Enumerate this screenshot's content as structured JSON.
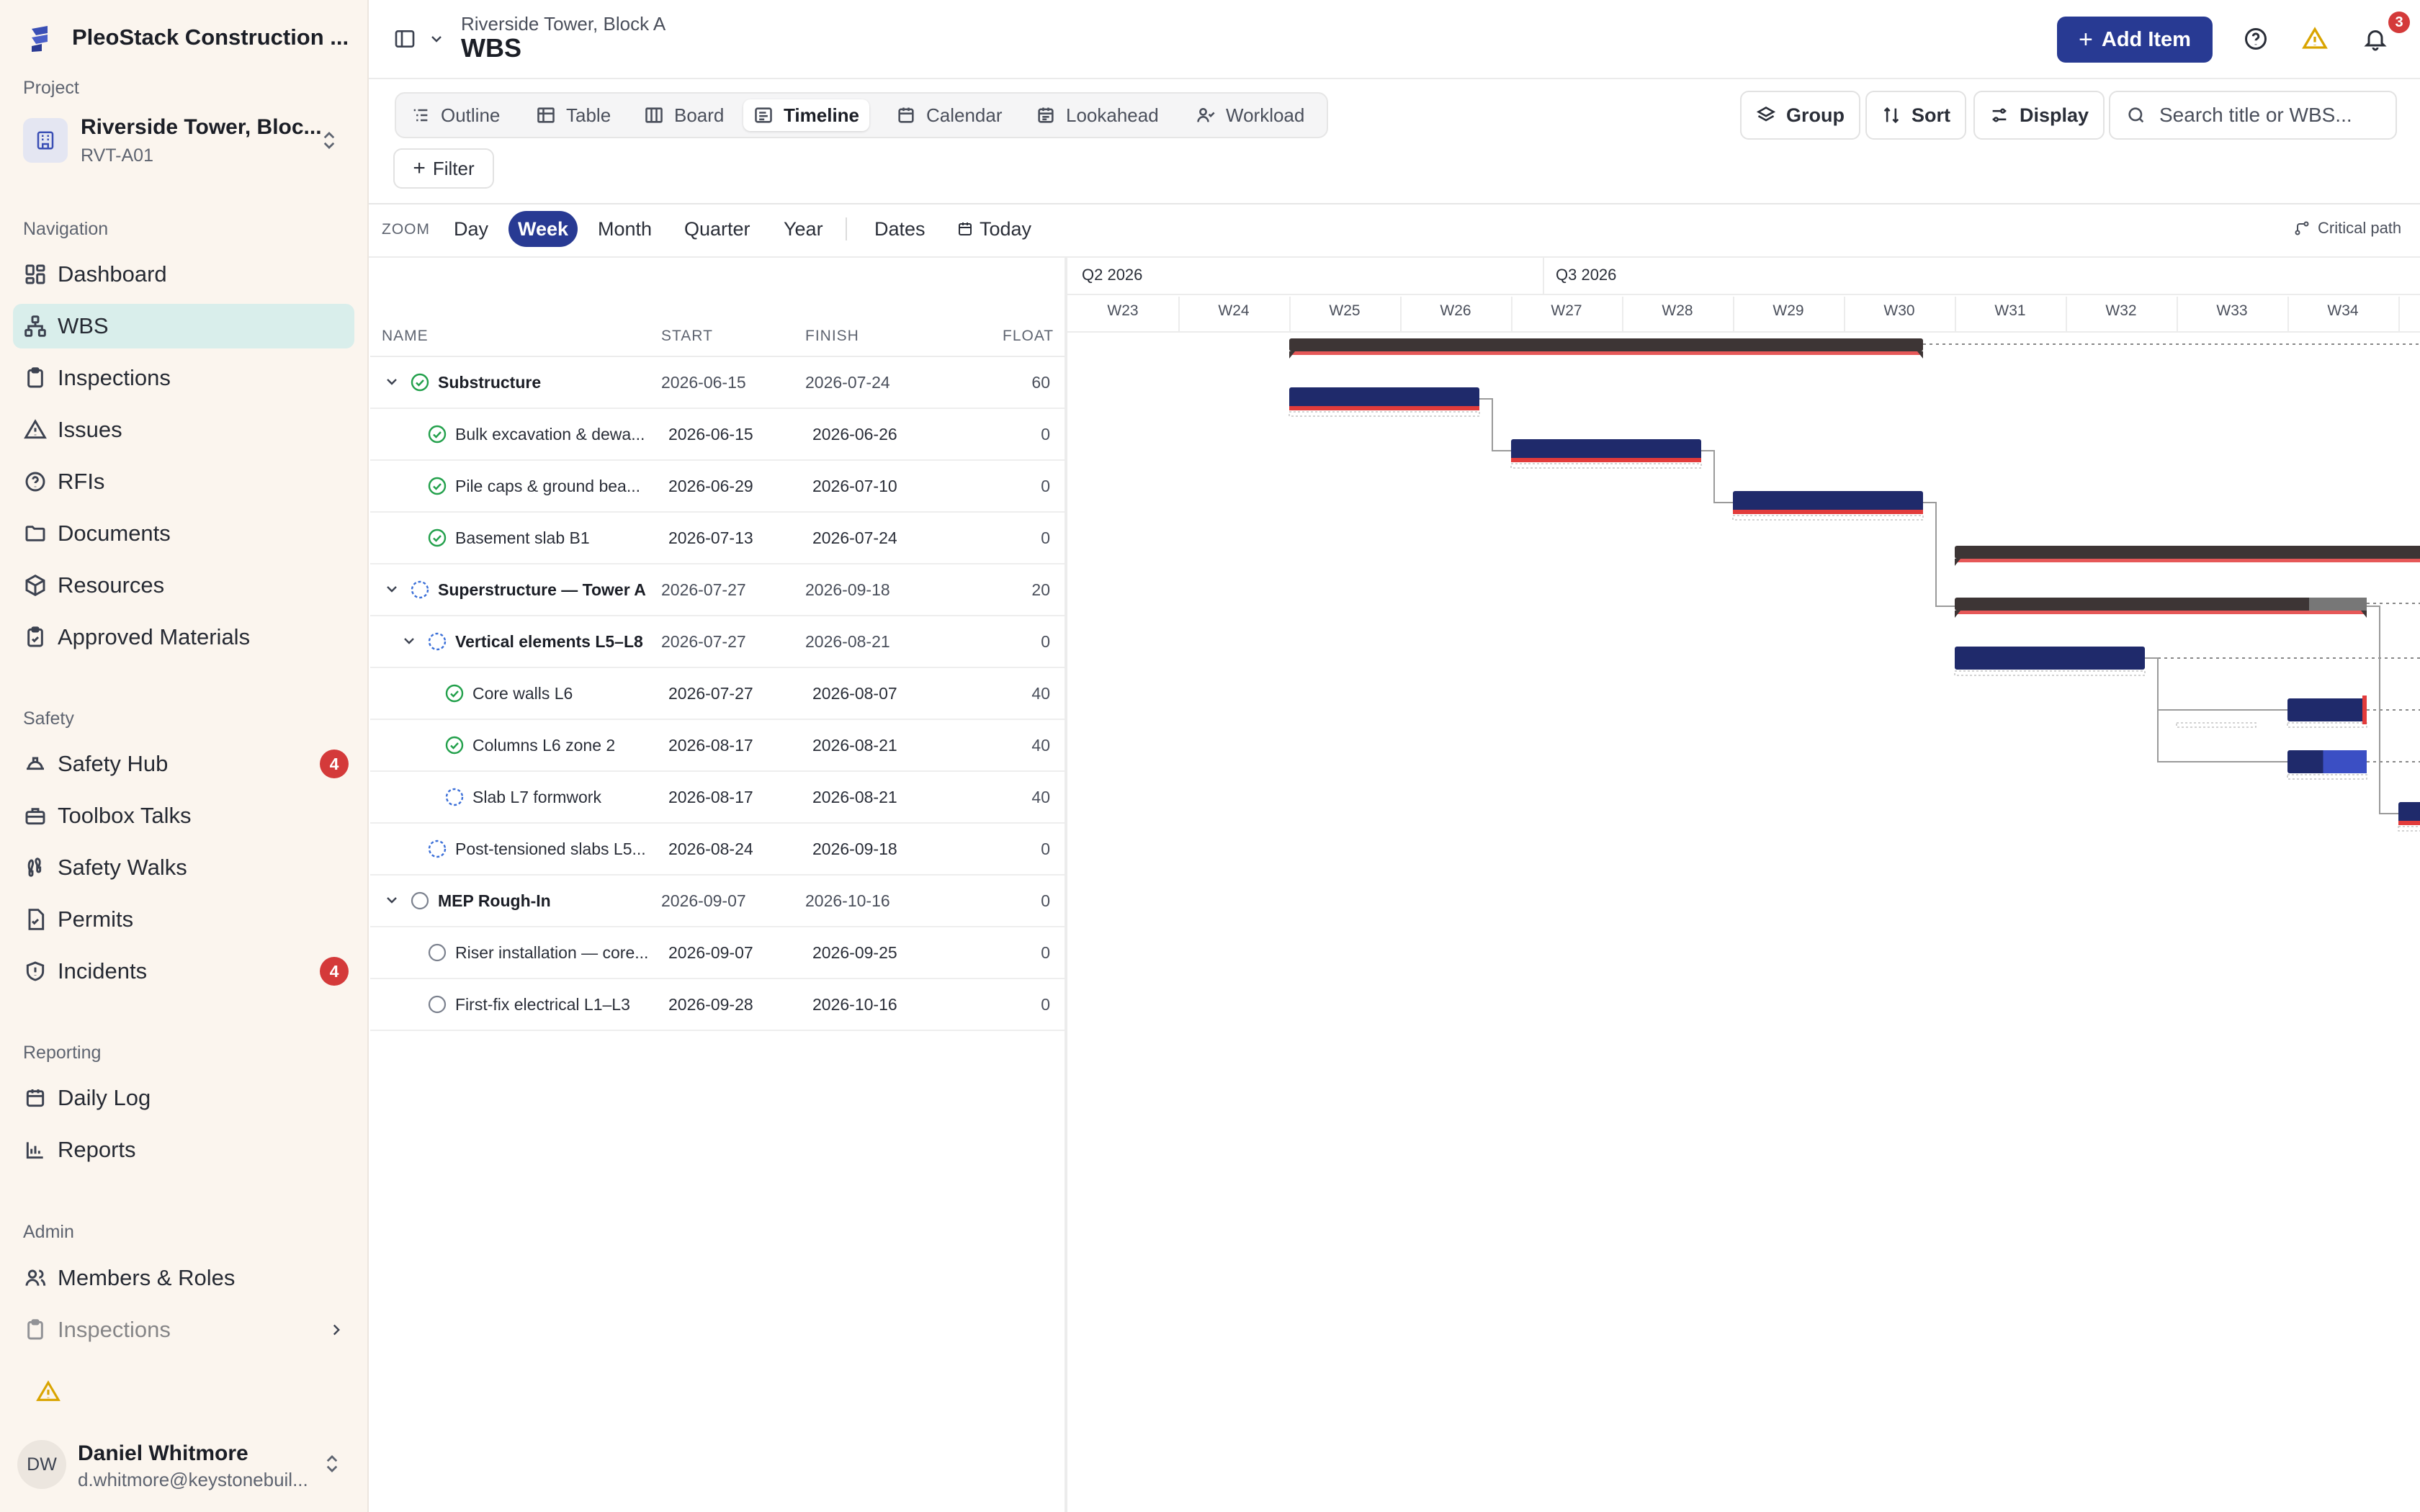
{
  "app": {
    "name": "PleoStack Construction ..."
  },
  "project": {
    "label": "Project",
    "name": "Riverside Tower, Bloc...",
    "code": "RVT-A01"
  },
  "sections": {
    "navigation": "Navigation",
    "safety": "Safety",
    "reporting": "Reporting",
    "admin": "Admin"
  },
  "nav": {
    "navigation": [
      {
        "label": "Dashboard",
        "icon": "dashboard-icon"
      },
      {
        "label": "WBS",
        "icon": "wbs-icon",
        "active": true
      },
      {
        "label": "Inspections",
        "icon": "clipboard-icon"
      },
      {
        "label": "Issues",
        "icon": "warning-icon"
      },
      {
        "label": "RFIs",
        "icon": "help-icon"
      },
      {
        "label": "Documents",
        "icon": "folder-icon"
      },
      {
        "label": "Resources",
        "icon": "box-icon"
      },
      {
        "label": "Approved Materials",
        "icon": "clipboard-check-icon"
      }
    ],
    "safety": [
      {
        "label": "Safety Hub",
        "icon": "helmet-icon",
        "badge": "4"
      },
      {
        "label": "Toolbox Talks",
        "icon": "toolbox-icon"
      },
      {
        "label": "Safety Walks",
        "icon": "footprints-icon"
      },
      {
        "label": "Permits",
        "icon": "file-check-icon"
      },
      {
        "label": "Incidents",
        "icon": "shield-alert-icon",
        "badge": "4"
      }
    ],
    "reporting": [
      {
        "label": "Daily Log",
        "icon": "calendar-icon"
      },
      {
        "label": "Reports",
        "icon": "bar-chart-icon"
      }
    ],
    "admin": [
      {
        "label": "Members & Roles",
        "icon": "users-icon"
      },
      {
        "label": "Inspections",
        "icon": "clipboard-icon"
      }
    ]
  },
  "user": {
    "initials": "DW",
    "name": "Daniel Whitmore",
    "email": "d.whitmore@keystonebuil..."
  },
  "header": {
    "breadcrumb": "Riverside Tower, Block A",
    "title": "WBS",
    "add_label": "Add Item",
    "notif_count": "3"
  },
  "views": [
    "Outline",
    "Table",
    "Board",
    "Timeline",
    "Calendar",
    "Lookahead",
    "Workload"
  ],
  "active_view": "Timeline",
  "tools": {
    "group": "Group",
    "sort": "Sort",
    "display": "Display",
    "search_placeholder": "Search title or WBS..."
  },
  "filter_label": "Filter",
  "zoom": {
    "label": "ZOOM",
    "options": [
      "Day",
      "Week",
      "Month",
      "Quarter",
      "Year"
    ],
    "active": "Week",
    "dates": "Dates",
    "today": "Today",
    "critical_path": "Critical path"
  },
  "columns": {
    "name": "NAME",
    "start": "START",
    "finish": "FINISH",
    "float": "FLOAT"
  },
  "quarters": [
    "Q2 2026",
    "Q3 2026"
  ],
  "weeks": [
    "W23",
    "W24",
    "W25",
    "W26",
    "W27",
    "W28",
    "W29",
    "W30",
    "W31",
    "W32",
    "W33",
    "W34"
  ],
  "rows": [
    {
      "name": "Substructure",
      "start": "2026-06-15",
      "finish": "2026-07-24",
      "float": "60",
      "level": 0,
      "group": true,
      "status": "complete"
    },
    {
      "name": "Bulk excavation & dewa...",
      "start": "2026-06-15",
      "finish": "2026-06-26",
      "float": "0",
      "level": 1,
      "group": false,
      "status": "complete"
    },
    {
      "name": "Pile caps & ground bea...",
      "start": "2026-06-29",
      "finish": "2026-07-10",
      "float": "0",
      "level": 1,
      "group": false,
      "status": "complete"
    },
    {
      "name": "Basement slab B1",
      "start": "2026-07-13",
      "finish": "2026-07-24",
      "float": "0",
      "level": 1,
      "group": false,
      "status": "complete"
    },
    {
      "name": "Superstructure — Tower A",
      "start": "2026-07-27",
      "finish": "2026-09-18",
      "float": "20",
      "level": 0,
      "group": true,
      "status": "in-progress"
    },
    {
      "name": "Vertical elements L5–L8",
      "start": "2026-07-27",
      "finish": "2026-08-21",
      "float": "0",
      "level": 1,
      "group": true,
      "status": "in-progress"
    },
    {
      "name": "Core walls L6",
      "start": "2026-07-27",
      "finish": "2026-08-07",
      "float": "40",
      "level": 2,
      "group": false,
      "status": "complete"
    },
    {
      "name": "Columns L6 zone 2",
      "start": "2026-08-17",
      "finish": "2026-08-21",
      "float": "40",
      "level": 2,
      "group": false,
      "status": "complete"
    },
    {
      "name": "Slab L7 formwork",
      "start": "2026-08-17",
      "finish": "2026-08-21",
      "float": "40",
      "level": 2,
      "group": false,
      "status": "in-progress"
    },
    {
      "name": "Post-tensioned slabs L5...",
      "start": "2026-08-24",
      "finish": "2026-09-18",
      "float": "0",
      "level": 1,
      "group": false,
      "status": "in-progress"
    },
    {
      "name": "MEP Rough-In",
      "start": "2026-09-07",
      "finish": "2026-10-16",
      "float": "0",
      "level": 0,
      "group": true,
      "status": "not-started"
    },
    {
      "name": "Riser installation — core...",
      "start": "2026-09-07",
      "finish": "2026-09-25",
      "float": "0",
      "level": 1,
      "group": false,
      "status": "not-started"
    },
    {
      "name": "First-fix electrical L1–L3",
      "start": "2026-09-28",
      "finish": "2026-10-16",
      "float": "0",
      "level": 1,
      "group": false,
      "status": "not-started"
    }
  ],
  "colors": {
    "accent": "#283a93",
    "bar": "#1f2a6b",
    "summary": "#3d3535",
    "critical": "#e23b3b",
    "active_nav": "#d9eeeb",
    "sidebar_bg": "#fbf5ee"
  }
}
